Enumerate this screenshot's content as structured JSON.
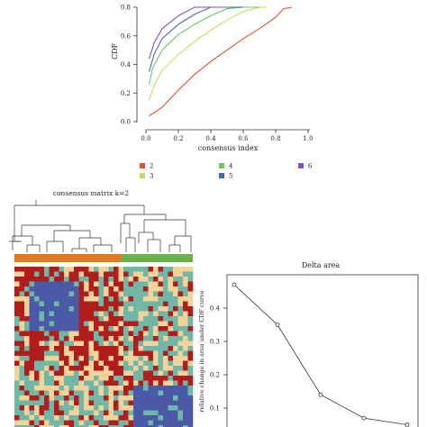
{
  "chart_data": [
    {
      "type": "line",
      "xlabel": "consensus index",
      "ylabel": "CDF",
      "xlim": [
        0.0,
        1.0
      ],
      "ylim": [
        0.0,
        0.8
      ],
      "x_ticks": [
        "0.0",
        "0.2",
        "0.4",
        "0.6",
        "0.8",
        "1.0"
      ],
      "y_ticks": [
        "0.0",
        "0.2",
        "0.4",
        "0.6",
        "0.8"
      ],
      "legend_position": "bottom",
      "series": [
        {
          "name": "2",
          "color": "#e0522a",
          "x": [
            0.02,
            0.1,
            0.2,
            0.3,
            0.4,
            0.5,
            0.6,
            0.7,
            0.8,
            0.85,
            0.9
          ],
          "y": [
            0.04,
            0.1,
            0.22,
            0.33,
            0.42,
            0.5,
            0.58,
            0.65,
            0.73,
            0.79,
            0.88
          ]
        },
        {
          "name": "3",
          "color": "#c8dc5a",
          "x": [
            0.02,
            0.05,
            0.1,
            0.2,
            0.3,
            0.4,
            0.5,
            0.6,
            0.7,
            0.75
          ],
          "y": [
            0.15,
            0.25,
            0.36,
            0.47,
            0.56,
            0.64,
            0.71,
            0.77,
            0.83,
            0.86
          ]
        },
        {
          "name": "4",
          "color": "#6cc46a",
          "x": [
            0.02,
            0.04,
            0.1,
            0.2,
            0.3,
            0.4,
            0.5,
            0.6,
            0.7
          ],
          "y": [
            0.26,
            0.37,
            0.5,
            0.61,
            0.68,
            0.74,
            0.79,
            0.83,
            0.86
          ]
        },
        {
          "name": "5",
          "color": "#4a66b8",
          "x": [
            0.02,
            0.05,
            0.1,
            0.2,
            0.3,
            0.4,
            0.5,
            0.6
          ],
          "y": [
            0.35,
            0.47,
            0.58,
            0.68,
            0.75,
            0.8,
            0.84,
            0.86
          ]
        },
        {
          "name": "6",
          "color": "#8a4fc4",
          "x": [
            0.02,
            0.05,
            0.1,
            0.2,
            0.3,
            0.4,
            0.5
          ],
          "y": [
            0.44,
            0.55,
            0.65,
            0.74,
            0.8,
            0.84,
            0.86
          ]
        }
      ]
    },
    {
      "type": "heatmap",
      "title": "consensus matrix k=2",
      "cluster_bar": [
        {
          "cluster": 1,
          "color": "#e07a1e",
          "fraction": 0.6
        },
        {
          "cluster": 2,
          "color": "#6ab04c",
          "fraction": 0.4
        }
      ],
      "dendrogram": "hierarchical clustering tree, two main branches",
      "colors": {
        "high": "#b11d1d",
        "mid": "#f2d49b",
        "low": "#4a5aa6",
        "teal": "#6fb8a8"
      }
    },
    {
      "type": "line",
      "title": "Delta area",
      "ylabel": "relative change in area under CDF curve",
      "xlim": [
        2,
        6
      ],
      "ylim": [
        0.0,
        0.5
      ],
      "y_ticks": [
        "0.1",
        "0.2",
        "0.3",
        "0.4"
      ],
      "series": [
        {
          "x": [
            2,
            3,
            4,
            5,
            6
          ],
          "y": [
            0.47,
            0.35,
            0.14,
            0.07,
            0.05
          ]
        }
      ]
    }
  ]
}
